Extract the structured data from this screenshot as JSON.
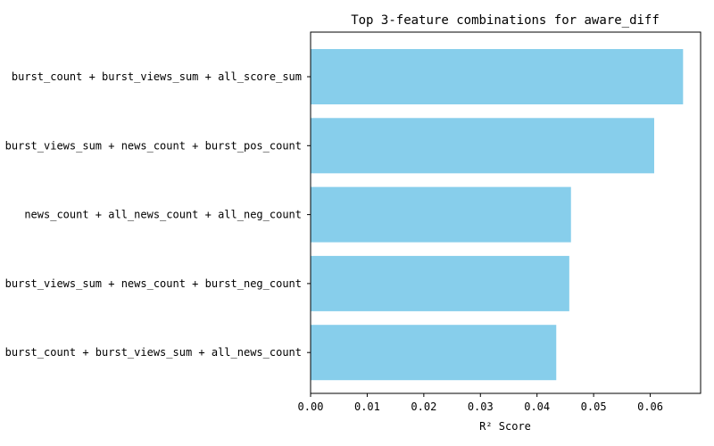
{
  "chart_data": {
    "type": "bar",
    "orientation": "horizontal",
    "title": "Top 3-feature combinations for aware_diff",
    "xlabel": "R² Score",
    "ylabel": "",
    "xlim": [
      0.0,
      0.0689
    ],
    "xticks": [
      0.0,
      0.01,
      0.02,
      0.03,
      0.04,
      0.05,
      0.06
    ],
    "xtick_labels": [
      "0.00",
      "0.01",
      "0.02",
      "0.03",
      "0.04",
      "0.05",
      "0.06"
    ],
    "grid": false,
    "bar_color": "#87ceeb",
    "categories": [
      "burst_count + burst_views_sum + all_score_sum",
      "burst_views_sum + news_count + burst_pos_count",
      "news_count + all_news_count + all_neg_count",
      "burst_views_sum + news_count + burst_neg_count",
      "burst_count + burst_views_sum + all_news_count"
    ],
    "values": [
      0.0658,
      0.0607,
      0.046,
      0.0457,
      0.0434
    ]
  }
}
